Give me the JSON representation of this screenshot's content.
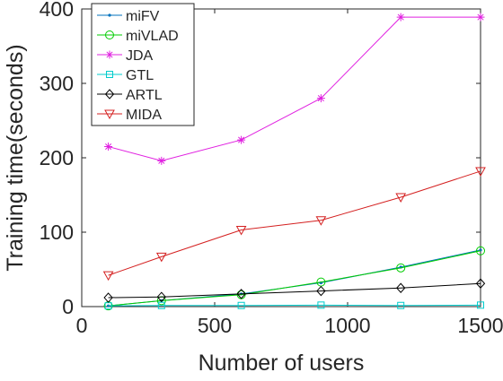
{
  "chart_data": {
    "type": "line",
    "title": "",
    "xlabel": "Number of users",
    "ylabel": "Training time(seconds)",
    "xlim": [
      0,
      1500
    ],
    "ylim": [
      0,
      400
    ],
    "xticks": [
      0,
      500,
      1000,
      1500
    ],
    "yticks": [
      0,
      100,
      200,
      300,
      400
    ],
    "grid": false,
    "legend_position": "top-left",
    "series": [
      {
        "name": "miFV",
        "color": "#0072BD",
        "marker": "point",
        "x": [
          100,
          300,
          600,
          900,
          1200,
          1500
        ],
        "y": [
          1,
          8,
          17,
          32,
          53,
          76
        ]
      },
      {
        "name": "miVLAD",
        "color": "#00CC00",
        "marker": "circle",
        "x": [
          100,
          300,
          600,
          900,
          1200,
          1500
        ],
        "y": [
          1,
          8,
          16,
          33,
          52,
          75
        ]
      },
      {
        "name": "JDA",
        "color": "#E020E0",
        "marker": "asterisk",
        "x": [
          100,
          300,
          600,
          900,
          1200,
          1500
        ],
        "y": [
          215,
          196,
          224,
          280,
          389,
          389
        ]
      },
      {
        "name": "GTL",
        "color": "#00CCCC",
        "marker": "square",
        "x": [
          100,
          300,
          600,
          900,
          1200,
          1500
        ],
        "y": [
          1,
          1.5,
          1.5,
          2,
          1.5,
          2
        ]
      },
      {
        "name": "ARTL",
        "color": "#000000",
        "marker": "diamond",
        "x": [
          100,
          300,
          600,
          900,
          1200,
          1500
        ],
        "y": [
          12,
          13,
          17,
          21,
          25,
          31
        ]
      },
      {
        "name": "MIDA",
        "color": "#D42020",
        "marker": "triangle-down",
        "x": [
          100,
          300,
          600,
          900,
          1200,
          1500
        ],
        "y": [
          42,
          67,
          103,
          116,
          147,
          182
        ]
      }
    ]
  }
}
